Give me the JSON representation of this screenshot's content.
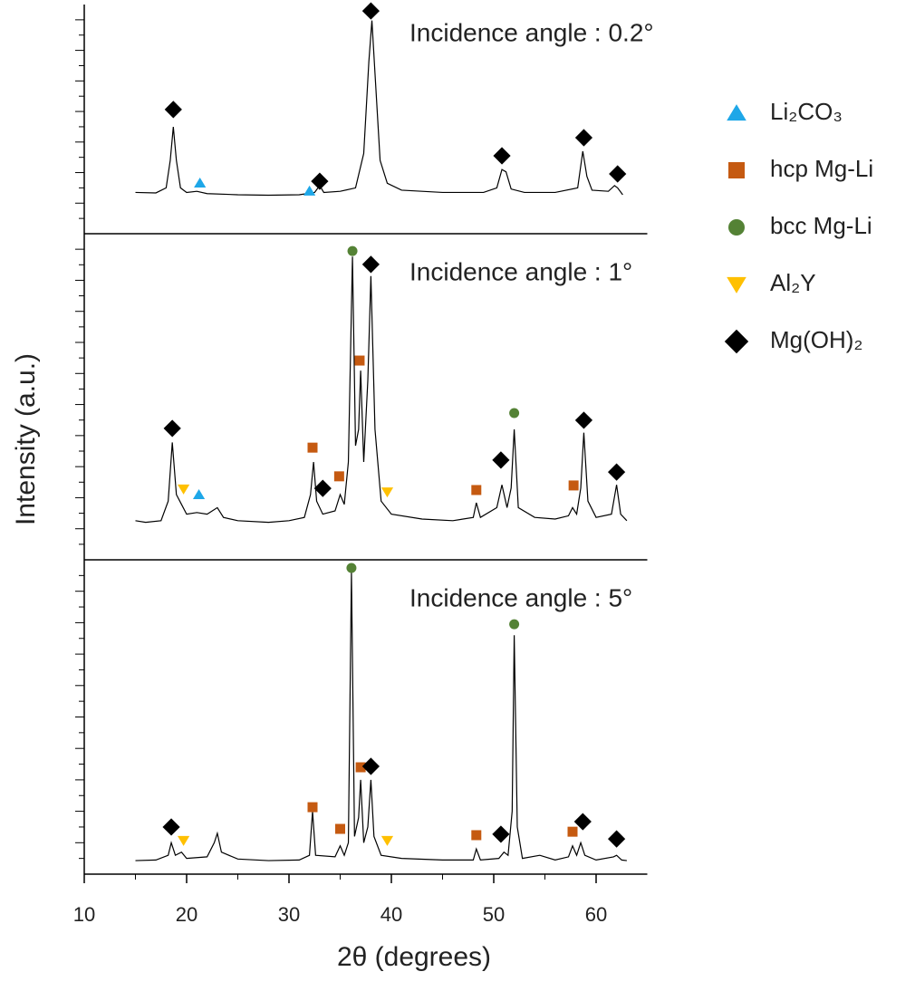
{
  "chart_data": {
    "type": "line",
    "x_label": "2θ (degrees)",
    "y_label": "Intensity (a.u.)",
    "xlim": [
      10,
      65
    ],
    "xticks": [
      10,
      20,
      30,
      40,
      50,
      60
    ],
    "line_color": "#000000",
    "phases": [
      {
        "name": "Li₂CO₃",
        "color": "#1ea7e8",
        "marker": "triangle-up"
      },
      {
        "name": "hcp Mg-Li",
        "color": "#c55a11",
        "marker": "square"
      },
      {
        "name": "bcc Mg-Li",
        "color": "#548235",
        "marker": "circle"
      },
      {
        "name": "Al₂Y",
        "color": "#ffc000",
        "marker": "triangle-down"
      },
      {
        "name": "Mg(OH)₂",
        "color": "#000000",
        "marker": "diamond"
      }
    ],
    "panels": [
      {
        "annotation": "Incidence angle : 0.2°",
        "ylim": [
          0,
          100
        ],
        "x": [
          15,
          17,
          18,
          18.4,
          18.7,
          19.0,
          19.4,
          20,
          21,
          22,
          25,
          28,
          31,
          32.5,
          33,
          33.4,
          35,
          36.5,
          37.3,
          37.8,
          38.1,
          38.4,
          38.9,
          39.6,
          41,
          45,
          49,
          50.3,
          50.8,
          51.2,
          51.7,
          53,
          56,
          58.2,
          58.7,
          59.1,
          59.6,
          61.2,
          61.8,
          62.1,
          62.6
        ],
        "values": [
          18,
          17.8,
          20,
          32,
          46.6,
          32,
          20,
          18,
          18.5,
          17.5,
          17,
          16.8,
          17,
          18,
          21,
          18,
          18.5,
          20,
          35,
          75,
          93,
          70,
          32,
          22,
          19,
          18,
          18,
          20,
          28,
          27,
          19.5,
          18,
          18,
          20,
          36,
          25,
          19,
          18.5,
          21,
          20,
          17
        ],
        "markers": [
          {
            "x": [
              21.3,
              32
            ],
            "y": [
              22.1,
              18.6
            ]
          },
          {
            "x": [],
            "y": []
          },
          {
            "x": [],
            "y": []
          },
          {
            "x": [],
            "y": []
          },
          {
            "x": [
              18.7,
              33,
              38,
              50.8,
              58.8,
              62.1
            ],
            "y": [
              54.2,
              22.9,
              97.2,
              34,
              41.9,
              26.1
            ]
          }
        ]
      },
      {
        "annotation": "Incidence angle : 1°",
        "ylim": [
          0,
          100
        ],
        "x": [
          15,
          16,
          17.5,
          18.2,
          18.6,
          19.0,
          19.5,
          20,
          21,
          22,
          23,
          23.6,
          25,
          28,
          30,
          31.5,
          32.1,
          32.4,
          32.7,
          33.3,
          34.5,
          35,
          35.4,
          35.8,
          36.2,
          36.5,
          36.8,
          37,
          37.3,
          37.7,
          38,
          38.4,
          39,
          40,
          43,
          46,
          48,
          48.3,
          48.7,
          50.3,
          50.8,
          51.3,
          51.7,
          52,
          52.4,
          54,
          56,
          57.3,
          57.7,
          58.1,
          58.5,
          58.8,
          59.2,
          60,
          61.5,
          62,
          62.4,
          63
        ],
        "values": [
          12,
          11.5,
          12,
          18,
          36,
          20,
          17,
          14,
          14.5,
          14,
          16,
          13,
          12,
          11.5,
          12,
          13,
          20,
          30,
          18,
          14,
          15,
          20,
          17,
          30,
          93,
          35,
          40,
          58,
          30,
          55,
          87,
          40,
          18,
          14,
          12.5,
          12,
          13,
          17.5,
          13,
          16,
          23,
          16,
          22,
          40,
          16,
          13,
          12.5,
          13.5,
          16,
          14,
          22,
          39,
          18,
          13,
          14,
          23,
          14,
          12
        ],
        "markers": [
          {
            "x": [
              21.2
            ],
            "y": [
              20
            ]
          },
          {
            "x": [
              32.3,
              34.9,
              36.9,
              48.3,
              57.8
            ],
            "y": [
              34.4,
              25.6,
              61.1,
              21.4,
              22.8
            ]
          },
          {
            "x": [
              36.2,
              52
            ],
            "y": [
              94.7,
              45
            ]
          },
          {
            "x": [
              19.7,
              39.6
            ],
            "y": [
              21.7,
              20.8
            ]
          },
          {
            "x": [
              18.6,
              33.3,
              38,
              50.7,
              58.8,
              62
            ],
            "y": [
              40.3,
              21.9,
              90.6,
              30.6,
              42.8,
              26.9
            ]
          }
        ]
      },
      {
        "annotation": "Incidence angle : 5°",
        "ylim": [
          0,
          100
        ],
        "x": [
          15,
          17,
          18.2,
          18.5,
          18.9,
          19.5,
          20,
          22,
          22.7,
          23,
          23.4,
          25,
          28,
          31,
          32,
          32.3,
          32.6,
          34.5,
          35,
          35.4,
          35.8,
          36.1,
          36.4,
          36.8,
          37,
          37.3,
          37.7,
          38,
          38.3,
          39,
          41,
          45,
          48,
          48.3,
          48.7,
          50.5,
          51,
          51.4,
          51.8,
          52,
          52.3,
          52.8,
          54.5,
          56,
          57.3,
          57.7,
          58.1,
          58.5,
          58.9,
          60,
          61.7,
          62,
          62.5,
          63
        ],
        "values": [
          4.3,
          4.5,
          6,
          10,
          6,
          7,
          5,
          5.5,
          10,
          13,
          7,
          4.8,
          4.3,
          4.5,
          6,
          20,
          6,
          5.5,
          9,
          6,
          10,
          96,
          12,
          18,
          30,
          10,
          15,
          30,
          12,
          6,
          5,
          4.5,
          4.5,
          8,
          4.5,
          5,
          7,
          6,
          20,
          76,
          15,
          5,
          6,
          4.5,
          5.5,
          9,
          6,
          10,
          6,
          4.5,
          5.5,
          6,
          4.5,
          4.3
        ],
        "markers": [
          {
            "x": [],
            "y": []
          },
          {
            "x": [
              32.3,
              35,
              37,
              48.3,
              57.7
            ],
            "y": [
              21.3,
              14.4,
              34,
              12.4,
              13.5
            ]
          },
          {
            "x": [
              36.1,
              52
            ],
            "y": [
              97.4,
              79.5
            ]
          },
          {
            "x": [
              19.7,
              39.6
            ],
            "y": [
              10.7,
              10.7
            ]
          },
          {
            "x": [
              18.5,
              38,
              50.7,
              58.7,
              62
            ],
            "y": [
              15,
              34.3,
              12.7,
              16.7,
              11.2
            ]
          }
        ]
      }
    ]
  }
}
